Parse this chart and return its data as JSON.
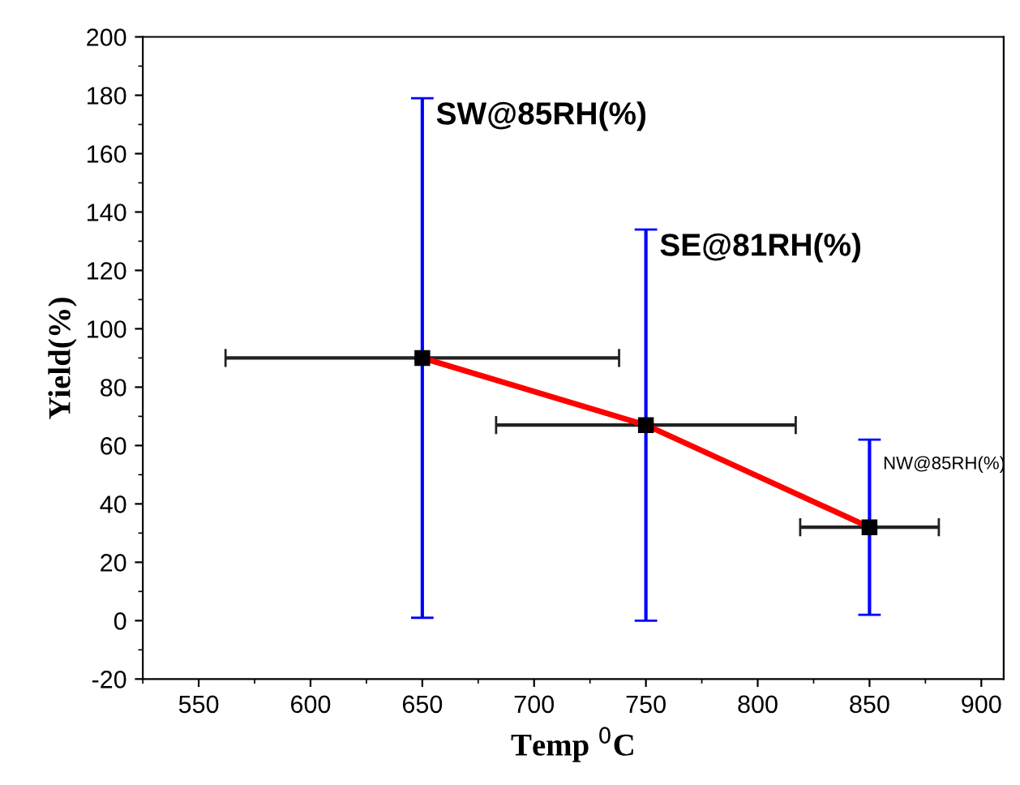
{
  "chart_data": {
    "type": "line",
    "xlabel": "Temp $^{0}$C",
    "ylabel": "Yield(%)",
    "x": [
      650,
      750,
      850
    ],
    "series": [
      {
        "color": "#ff0000",
        "values": [
          90,
          67,
          32
        ],
        "errors": [
          89,
          67,
          30
        ],
        "xerrors": [
          88,
          67,
          31
        ]
      }
    ],
    "xlim": [
      525,
      910
    ],
    "xticks": [
      550,
      600,
      650,
      700,
      750,
      800,
      850,
      900
    ],
    "ylim": [
      -20,
      200
    ],
    "yticks": [
      -20,
      0,
      20,
      40,
      60,
      80,
      100,
      120,
      140,
      160,
      180,
      200
    ],
    "marker": "square",
    "line_style": "solid",
    "grid": false,
    "legend": false,
    "annotations": [
      "SW@85RH(%)",
      "SE@81RH(%)",
      "NW@85RH(%)"
    ]
  }
}
